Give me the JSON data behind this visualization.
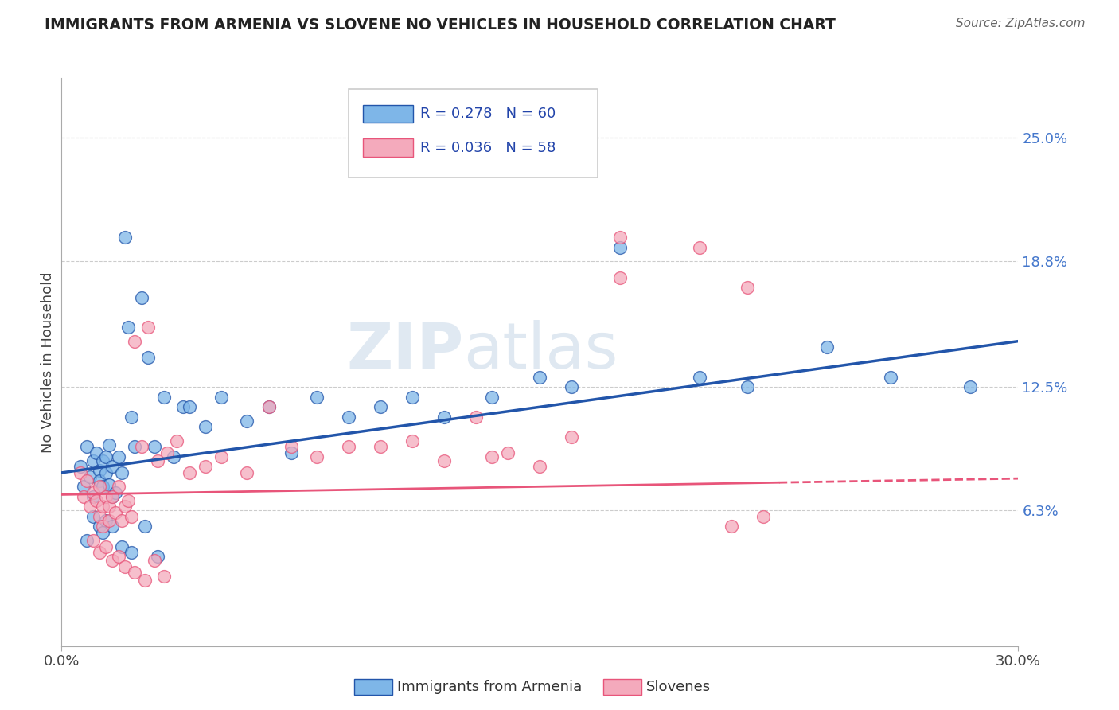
{
  "title": "IMMIGRANTS FROM ARMENIA VS SLOVENE NO VEHICLES IN HOUSEHOLD CORRELATION CHART",
  "source": "Source: ZipAtlas.com",
  "ylabel": "No Vehicles in Household",
  "xlim": [
    0.0,
    0.3
  ],
  "ylim": [
    -0.005,
    0.28
  ],
  "ytick_labels_right": [
    "25.0%",
    "18.8%",
    "12.5%",
    "6.3%"
  ],
  "ytick_values_right": [
    0.25,
    0.188,
    0.125,
    0.063
  ],
  "legend_r1": "R = 0.278",
  "legend_n1": "N = 60",
  "legend_r2": "R = 0.036",
  "legend_n2": "N = 58",
  "color_armenia": "#7EB6E8",
  "color_slovene": "#F4AABC",
  "color_line_armenia": "#2255AA",
  "color_line_slovene": "#E8557A",
  "watermark_1": "ZIP",
  "watermark_2": "atlas",
  "grid_color": "#CCCCCC",
  "background_color": "#FFFFFF",
  "armenia_x": [
    0.006,
    0.007,
    0.008,
    0.009,
    0.01,
    0.01,
    0.011,
    0.012,
    0.012,
    0.013,
    0.013,
    0.014,
    0.014,
    0.015,
    0.015,
    0.016,
    0.016,
    0.017,
    0.018,
    0.019,
    0.02,
    0.021,
    0.022,
    0.023,
    0.025,
    0.027,
    0.029,
    0.032,
    0.035,
    0.038,
    0.04,
    0.045,
    0.05,
    0.058,
    0.065,
    0.072,
    0.08,
    0.09,
    0.1,
    0.11,
    0.12,
    0.135,
    0.15,
    0.16,
    0.175,
    0.2,
    0.215,
    0.24,
    0.26,
    0.285,
    0.01,
    0.012,
    0.014,
    0.008,
    0.013,
    0.016,
    0.019,
    0.022,
    0.026,
    0.03
  ],
  "armenia_y": [
    0.085,
    0.075,
    0.095,
    0.08,
    0.088,
    0.07,
    0.092,
    0.083,
    0.078,
    0.088,
    0.075,
    0.09,
    0.082,
    0.076,
    0.096,
    0.07,
    0.085,
    0.072,
    0.09,
    0.082,
    0.2,
    0.155,
    0.11,
    0.095,
    0.17,
    0.14,
    0.095,
    0.12,
    0.09,
    0.115,
    0.115,
    0.105,
    0.12,
    0.108,
    0.115,
    0.092,
    0.12,
    0.11,
    0.115,
    0.12,
    0.11,
    0.12,
    0.13,
    0.125,
    0.195,
    0.13,
    0.125,
    0.145,
    0.13,
    0.125,
    0.06,
    0.055,
    0.058,
    0.048,
    0.052,
    0.055,
    0.045,
    0.042,
    0.055,
    0.04
  ],
  "slovene_x": [
    0.006,
    0.007,
    0.008,
    0.009,
    0.01,
    0.011,
    0.012,
    0.012,
    0.013,
    0.013,
    0.014,
    0.015,
    0.015,
    0.016,
    0.017,
    0.018,
    0.019,
    0.02,
    0.021,
    0.022,
    0.023,
    0.025,
    0.027,
    0.03,
    0.033,
    0.036,
    0.04,
    0.045,
    0.05,
    0.058,
    0.065,
    0.072,
    0.08,
    0.09,
    0.1,
    0.11,
    0.12,
    0.135,
    0.15,
    0.16,
    0.175,
    0.2,
    0.215,
    0.13,
    0.14,
    0.175,
    0.21,
    0.22,
    0.01,
    0.012,
    0.014,
    0.016,
    0.018,
    0.02,
    0.023,
    0.026,
    0.029,
    0.032
  ],
  "slovene_y": [
    0.082,
    0.07,
    0.078,
    0.065,
    0.072,
    0.068,
    0.075,
    0.06,
    0.065,
    0.055,
    0.07,
    0.065,
    0.058,
    0.07,
    0.062,
    0.075,
    0.058,
    0.065,
    0.068,
    0.06,
    0.148,
    0.095,
    0.155,
    0.088,
    0.092,
    0.098,
    0.082,
    0.085,
    0.09,
    0.082,
    0.115,
    0.095,
    0.09,
    0.095,
    0.095,
    0.098,
    0.088,
    0.09,
    0.085,
    0.1,
    0.2,
    0.195,
    0.175,
    0.11,
    0.092,
    0.18,
    0.055,
    0.06,
    0.048,
    0.042,
    0.045,
    0.038,
    0.04,
    0.035,
    0.032,
    0.028,
    0.038,
    0.03
  ]
}
